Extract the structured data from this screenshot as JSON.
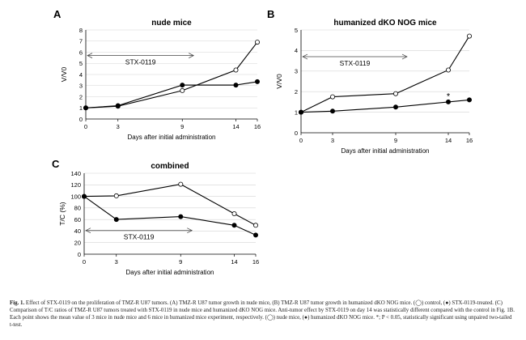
{
  "chart_data": [
    {
      "panel_letter": "A",
      "type": "line",
      "title": "nude mice",
      "xlabel": "Days after initial administration",
      "ylabel": "V/V0",
      "x": [
        0,
        3,
        9,
        14,
        16
      ],
      "xticks": [
        "0",
        "3",
        "9",
        "14",
        "16"
      ],
      "yticks": [
        "0",
        "1",
        "2",
        "3",
        "4",
        "5",
        "6",
        "7",
        "8"
      ],
      "ylim": [
        0,
        8
      ],
      "grid": "horizontal",
      "series": [
        {
          "marker": "open-circle",
          "values": [
            1.0,
            1.15,
            2.55,
            4.4,
            6.9
          ]
        },
        {
          "marker": "filled-circle",
          "values": [
            1.0,
            1.2,
            3.05,
            3.05,
            3.35
          ]
        }
      ],
      "annotation": {
        "text": "STX-0119",
        "x_from": 0,
        "x_to": 9,
        "y": 5.7
      },
      "asterisk": null
    },
    {
      "panel_letter": "B",
      "type": "line",
      "title": "humanized dKO NOG mice",
      "xlabel": "Days after initial administration",
      "ylabel": "V/V0",
      "x": [
        0,
        3,
        9,
        14,
        16
      ],
      "xticks": [
        "0",
        "3",
        "9",
        "14",
        "16"
      ],
      "yticks": [
        "0",
        "1",
        "2",
        "3",
        "4",
        "5"
      ],
      "ylim": [
        0,
        5
      ],
      "grid": "horizontal",
      "series": [
        {
          "marker": "open-circle",
          "values": [
            1.0,
            1.75,
            1.9,
            3.05,
            4.7
          ]
        },
        {
          "marker": "filled-circle",
          "values": [
            1.0,
            1.05,
            1.25,
            1.5,
            1.6
          ]
        }
      ],
      "annotation": {
        "text": "STX-0119",
        "x_from": 0,
        "x_to": 9,
        "y": 3.7
      },
      "asterisk": {
        "text": "*",
        "x": 14,
        "y": 1.75
      }
    },
    {
      "panel_letter": "C",
      "type": "line",
      "title": "combined",
      "xlabel": "Days after initial administration",
      "ylabel": "T/C (%)",
      "x": [
        0,
        3,
        9,
        14,
        16
      ],
      "xticks": [
        "0",
        "3",
        "9",
        "14",
        "16"
      ],
      "yticks": [
        "0",
        "20",
        "40",
        "60",
        "80",
        "100",
        "120",
        "140"
      ],
      "ylim": [
        0,
        140
      ],
      "grid": "horizontal",
      "series": [
        {
          "marker": "open-circle",
          "values": [
            100,
            101,
            121,
            70,
            50
          ]
        },
        {
          "marker": "filled-circle",
          "values": [
            100,
            60,
            65,
            50,
            33
          ]
        }
      ],
      "annotation": {
        "text": "STX-0119",
        "x_from": 0,
        "x_to": 9,
        "y": 41
      },
      "asterisk": null
    }
  ],
  "caption": {
    "lead": "Fig. 1.",
    "body": "Effect of STX-0119 on the proliferation of TMZ-R U87 tumors. (A) TMZ-R U87 tumor growth in nude mice, (B) TMZ-R U87 tumor growth in humanized dKO NOG mice. (◯) control, (●) STX-0119-treated. (C) Comparison of T/C ratios of TMZ-R U87 tumors treated with STX-0119 in nude mice and humanized dKO NOG mice. Anti-tumor effect by STX-0119 on day 14 was statistically different compared with the control in Fig. 1B. Each point shows the mean value of 3 mice in nude mice and 6 mice in humanized mice experiment, respectively. (◯) nude mice, (●) humanized dKO NOG mice. *; P < 0.05, statistically significant using unpaired two-tailed t-test."
  }
}
